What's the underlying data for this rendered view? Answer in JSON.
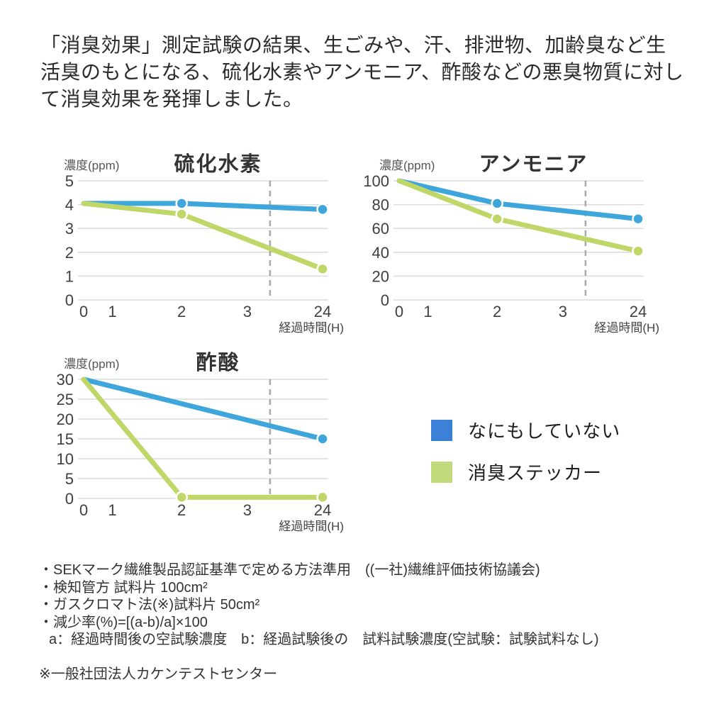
{
  "header": {
    "paragraph": "「消臭効果」測定試験の結果、生ごみや、汗、排泄物、加齢臭など生活臭のもとになる、硫化水素やアンモニア、酢酸などの悪臭物質に対して消臭効果を発揮しました。"
  },
  "chart_data": [
    {
      "type": "line",
      "title": "硫化水素",
      "y_unit_label": "濃度(ppm)",
      "x_label": "経過時間(H)",
      "x_ticks": [
        0,
        1,
        2,
        3,
        24
      ],
      "x_tick_pos": [
        0,
        0.12,
        0.41,
        0.685,
        1
      ],
      "y_ticks": [
        0,
        1,
        2,
        3,
        4,
        5
      ],
      "ylim": [
        0,
        5
      ],
      "dashed_line_pos": 0.78,
      "series": [
        {
          "name": "なにもしていない",
          "color_key": "untreated",
          "x": [
            0,
            2,
            24
          ],
          "y": [
            4.05,
            4.05,
            3.8
          ],
          "marker_x": [
            2,
            24
          ]
        },
        {
          "name": "消臭ステッカー",
          "color_key": "sticker",
          "x": [
            0,
            2,
            24
          ],
          "y": [
            4.05,
            3.6,
            1.3
          ],
          "marker_x": [
            2,
            24
          ]
        }
      ]
    },
    {
      "type": "line",
      "title": "アンモニア",
      "y_unit_label": "濃度(ppm)",
      "x_label": "経過時間(H)",
      "x_ticks": [
        0,
        1,
        2,
        3,
        24
      ],
      "x_tick_pos": [
        0,
        0.12,
        0.41,
        0.685,
        1
      ],
      "y_ticks": [
        0,
        20,
        40,
        60,
        80,
        100
      ],
      "ylim": [
        0,
        100
      ],
      "dashed_line_pos": 0.78,
      "series": [
        {
          "name": "なにもしていない",
          "color_key": "untreated",
          "x": [
            0,
            2,
            24
          ],
          "y": [
            100,
            81,
            68
          ],
          "marker_x": [
            2,
            24
          ]
        },
        {
          "name": "消臭ステッカー",
          "color_key": "sticker",
          "x": [
            0,
            2,
            24
          ],
          "y": [
            100,
            68,
            41
          ],
          "marker_x": [
            2,
            24
          ]
        }
      ]
    },
    {
      "type": "line",
      "title": "酢酸",
      "y_unit_label": "濃度(ppm)",
      "x_label": "経過時間(H)",
      "x_ticks": [
        0,
        1,
        2,
        3,
        24
      ],
      "x_tick_pos": [
        0,
        0.12,
        0.41,
        0.685,
        1
      ],
      "y_ticks": [
        0,
        5,
        10,
        15,
        20,
        25,
        30
      ],
      "ylim": [
        0,
        30
      ],
      "dashed_line_pos": 0.78,
      "series": [
        {
          "name": "なにもしていない",
          "color_key": "untreated",
          "x": [
            0,
            24
          ],
          "y": [
            30,
            15
          ],
          "marker_x": [
            24
          ]
        },
        {
          "name": "消臭ステッカー",
          "color_key": "sticker",
          "x": [
            0,
            2,
            24
          ],
          "y": [
            30,
            0.3,
            0.3
          ],
          "marker_x": [
            2,
            24
          ]
        }
      ]
    }
  ],
  "legend": {
    "items": [
      {
        "label": "なにもしていない",
        "color_key": "untreated"
      },
      {
        "label": "消臭ステッカー",
        "color_key": "sticker"
      }
    ]
  },
  "notes": {
    "lines": [
      "・SEKマーク繊維製品認証基準で定める方法準用　((一社)繊維評価技術協議会)",
      "・検知管方 試料片 100cm²",
      "・ガスクロマト法(※)試料片 50cm²",
      "・減少率(%)=[(a-b)/a]×100",
      "a：経過時間後の空試験濃度　b：経過試験後の　試料試験濃度(空試験：試験試料なし)"
    ],
    "bottom_note": "※一般社団法人カケンテストセンター"
  },
  "colors": {
    "untreated": {
      "line": "#3EA6DB",
      "swatch": "#3C80D8"
    },
    "sticker": {
      "line": "#BED768",
      "swatch": "#C1DA7C"
    },
    "grid": "#DBDBDB",
    "dashed_line": "#A9A9A9"
  }
}
